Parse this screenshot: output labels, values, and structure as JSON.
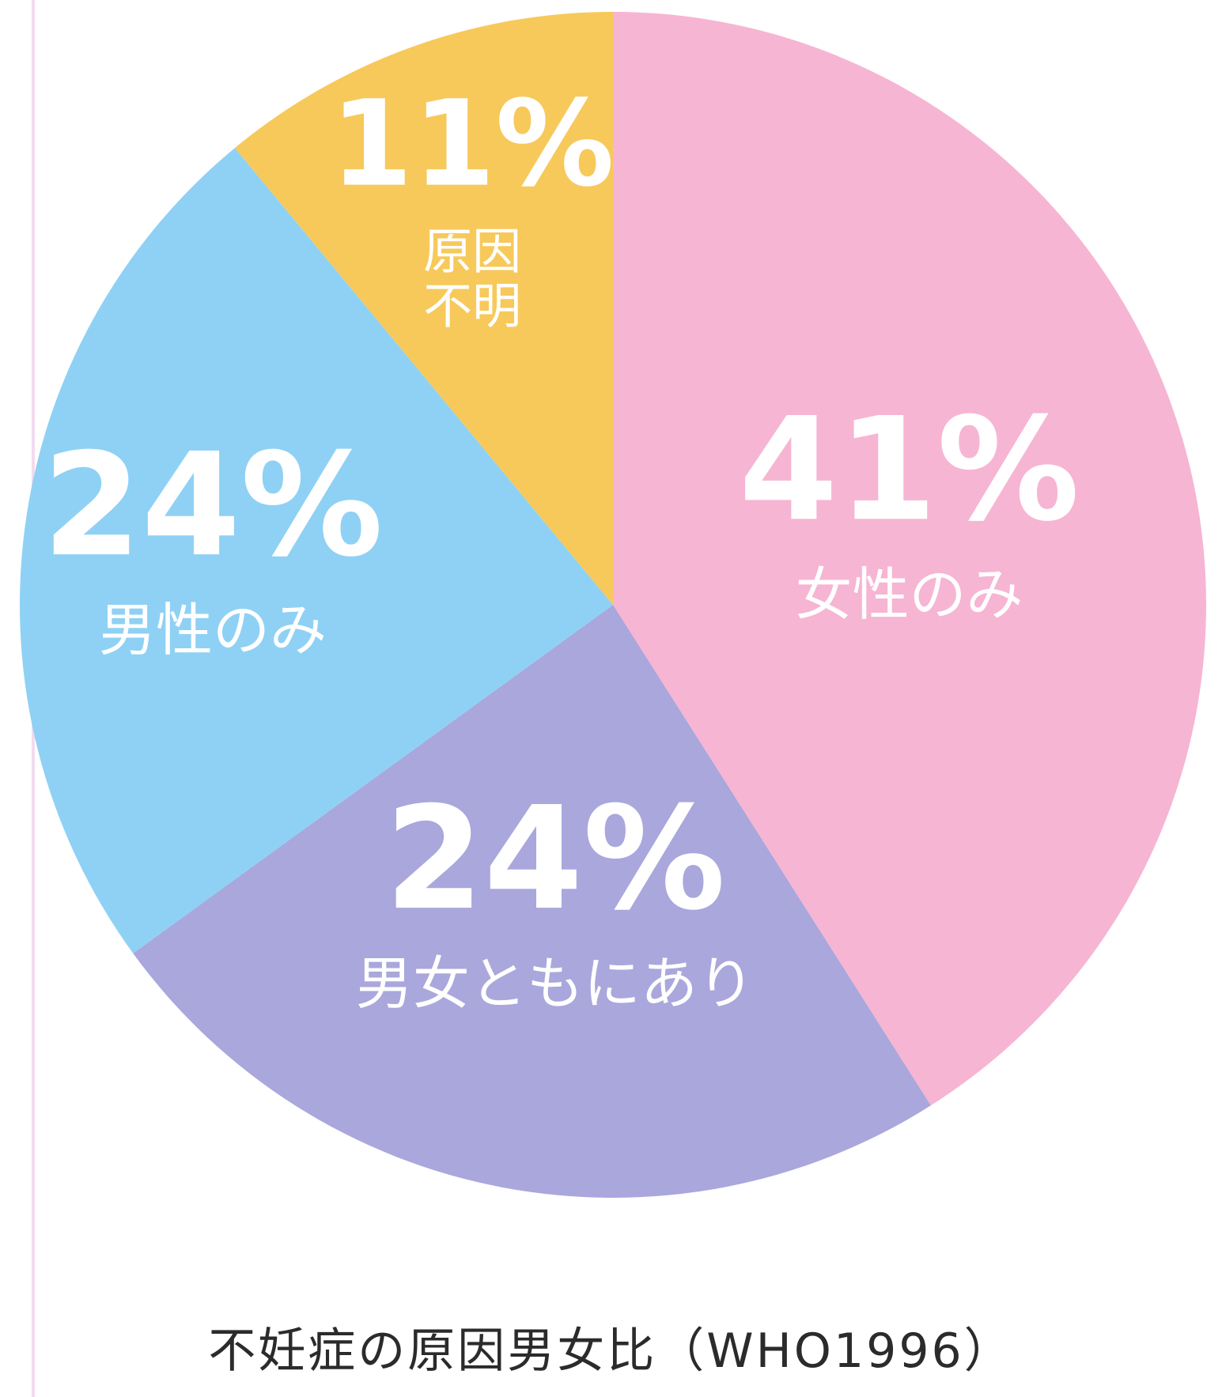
{
  "caption": "不妊症の原因男女比（WHO1996）",
  "chart_data": {
    "type": "pie",
    "title": "不妊症の原因男女比（WHO1996）",
    "start": "top",
    "direction": "clockwise",
    "slices": [
      {
        "value": 41,
        "percent_label": "41%",
        "label_lines": [
          "女性のみ"
        ],
        "color": "#f6b5d3"
      },
      {
        "value": 24,
        "percent_label": "24%",
        "label_lines": [
          "男女ともにあり"
        ],
        "color": "#a9a7dc"
      },
      {
        "value": 24,
        "percent_label": "24%",
        "label_lines": [
          "男性のみ"
        ],
        "color": "#8fd1f4"
      },
      {
        "value": 11,
        "percent_label": "11%",
        "label_lines": [
          "原因",
          "不明"
        ],
        "color": "#f7c95a"
      }
    ]
  }
}
